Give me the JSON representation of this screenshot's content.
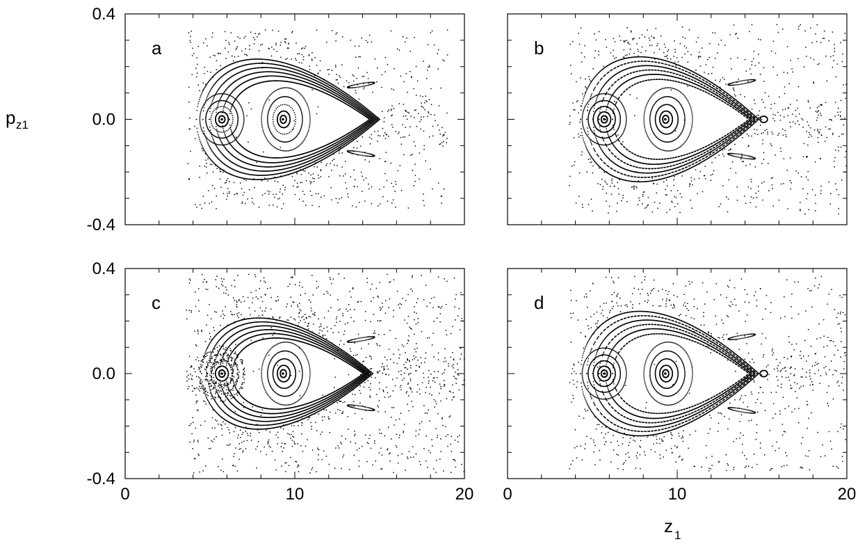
{
  "chart_data": [
    {
      "type": "scatter",
      "panel_label": "a",
      "xlim": [
        0,
        20
      ],
      "ylim": [
        -0.4,
        0.4
      ],
      "x_ticks": [
        0,
        10,
        20
      ],
      "y_ticks": [
        -0.4,
        0.0,
        0.4
      ],
      "x_tick_labels_shown": false,
      "y_tick_labels_shown": true,
      "grid": false,
      "fixed_points": [
        {
          "x": 5.7,
          "y": 0.0
        },
        {
          "x": 9.3,
          "y": 0.0
        }
      ],
      "islands": [
        {
          "x": 13.9,
          "y": 0.13
        },
        {
          "x": 13.9,
          "y": -0.13
        }
      ],
      "regular_region_x": [
        4.2,
        15.0
      ],
      "regular_region_y": [
        -0.27,
        0.27
      ],
      "chaotic_region_x": [
        3.7,
        19.0
      ],
      "chaotic_region_y": [
        -0.34,
        0.34
      ],
      "layer_level": 0.0
    },
    {
      "type": "scatter",
      "panel_label": "b",
      "xlim": [
        0,
        20
      ],
      "ylim": [
        -0.4,
        0.4
      ],
      "x_ticks": [
        0,
        10,
        20
      ],
      "y_ticks": [
        -0.4,
        0.0,
        0.4
      ],
      "x_tick_labels_shown": false,
      "y_tick_labels_shown": false,
      "grid": false,
      "fixed_points": [
        {
          "x": 5.7,
          "y": 0.0
        },
        {
          "x": 9.3,
          "y": 0.0
        }
      ],
      "islands": [
        {
          "x": 13.8,
          "y": 0.14
        },
        {
          "x": 13.8,
          "y": -0.14
        },
        {
          "x": 15.1,
          "y": 0.0
        }
      ],
      "regular_region_x": [
        4.3,
        14.8
      ],
      "regular_region_y": [
        -0.28,
        0.28
      ],
      "chaotic_region_x": [
        3.6,
        20.0
      ],
      "chaotic_region_y": [
        -0.36,
        0.36
      ],
      "layer_level": 0.0
    },
    {
      "type": "scatter",
      "panel_label": "c",
      "xlim": [
        0,
        20
      ],
      "ylim": [
        -0.4,
        0.4
      ],
      "x_ticks": [
        0,
        10,
        20
      ],
      "y_ticks": [
        -0.4,
        0.0,
        0.4
      ],
      "x_tick_labels_shown": true,
      "y_tick_labels_shown": true,
      "grid": false,
      "fixed_points": [
        {
          "x": 5.7,
          "y": 0.0
        },
        {
          "x": 9.3,
          "y": 0.0
        }
      ],
      "islands": [
        {
          "x": 13.9,
          "y": 0.13
        },
        {
          "x": 13.9,
          "y": -0.13
        }
      ],
      "regular_region_x": [
        4.5,
        14.6
      ],
      "regular_region_y": [
        -0.25,
        0.25
      ],
      "chaotic_region_x": [
        3.6,
        20.0
      ],
      "chaotic_region_y": [
        -0.38,
        0.38
      ],
      "layer_level": 0.0
    },
    {
      "type": "scatter",
      "panel_label": "d",
      "xlim": [
        0,
        20
      ],
      "ylim": [
        -0.4,
        0.4
      ],
      "x_ticks": [
        0,
        10,
        20
      ],
      "y_ticks": [
        -0.4,
        0.0,
        0.4
      ],
      "x_tick_labels_shown": true,
      "y_tick_labels_shown": false,
      "grid": false,
      "fixed_points": [
        {
          "x": 5.7,
          "y": 0.0
        },
        {
          "x": 9.3,
          "y": 0.0
        }
      ],
      "islands": [
        {
          "x": 13.8,
          "y": 0.14
        },
        {
          "x": 13.8,
          "y": -0.14
        },
        {
          "x": 15.1,
          "y": 0.0
        }
      ],
      "regular_region_x": [
        4.3,
        14.8
      ],
      "regular_region_y": [
        -0.28,
        0.28
      ],
      "chaotic_region_x": [
        3.6,
        20.0
      ],
      "chaotic_region_y": [
        -0.37,
        0.37
      ],
      "layer_level": 0.0
    }
  ],
  "axes": {
    "ylabel_main": "p",
    "ylabel_sub": "z1",
    "xlabel_main": "z",
    "xlabel_sub": "1",
    "y_tick_labels": [
      "0.4",
      "0.0",
      "-0.4"
    ],
    "x_tick_labels": [
      "0",
      "10",
      "20"
    ]
  },
  "colors": {
    "ink": "#000000",
    "background": "#ffffff"
  }
}
